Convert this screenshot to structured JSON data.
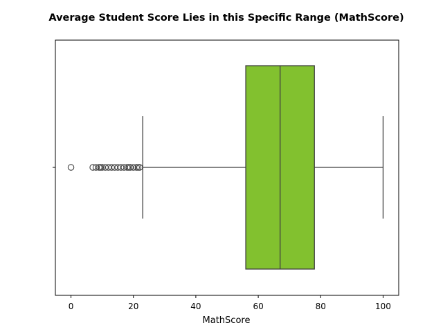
{
  "chart_data": {
    "type": "box",
    "title": "Average Student Score Lies in this Specific Range (MathScore)",
    "xlabel": "MathScore",
    "ylabel": "",
    "xlim": [
      -5,
      105
    ],
    "xticks": [
      0,
      20,
      40,
      60,
      80,
      100
    ],
    "xtick_labels": [
      "0",
      "20",
      "40",
      "60",
      "80",
      "100"
    ],
    "box_color": "#82c12f",
    "line_color": "#3f3f3f",
    "box": {
      "whisker_low": 23,
      "q1": 56,
      "median": 67,
      "q3": 78,
      "whisker_high": 100
    },
    "outliers": [
      0,
      7,
      8,
      9,
      9.5,
      10,
      11,
      12,
      13,
      14,
      15,
      16,
      17,
      18,
      18.5,
      19,
      20,
      21,
      21.5,
      22
    ]
  }
}
